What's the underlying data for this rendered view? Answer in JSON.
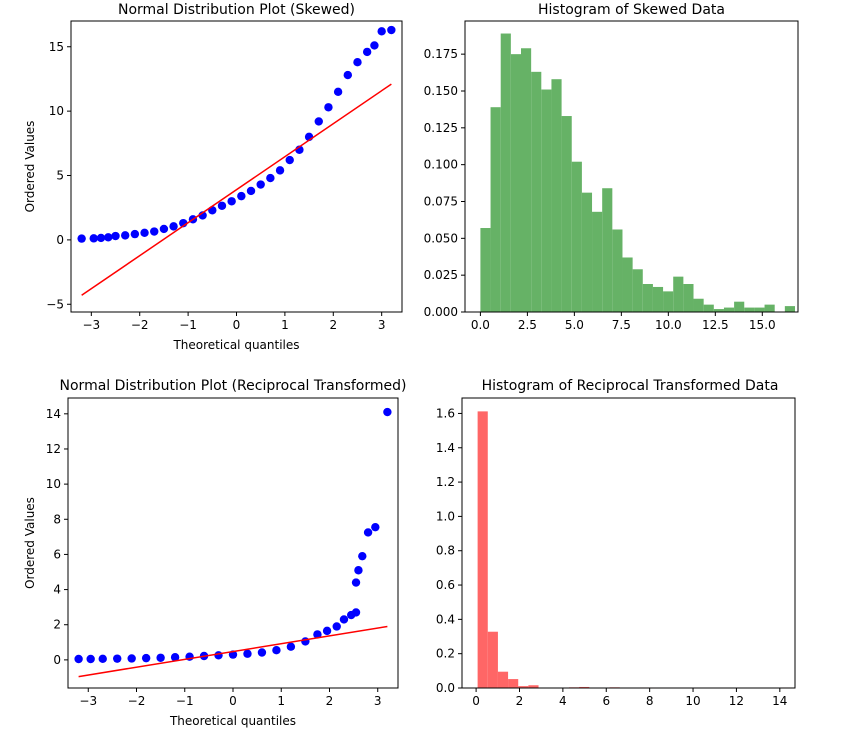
{
  "chart_data": [
    {
      "type": "scatter",
      "title": "Normal Distribution Plot (Skewed)",
      "xlabel": "Theoretical quantiles",
      "ylabel": "Ordered Values",
      "xlim": [
        -3.42,
        3.42
      ],
      "ylim": [
        -5.6,
        17.0
      ],
      "xticks": [
        -3,
        -2,
        -1,
        0,
        1,
        2,
        3
      ],
      "xtick_labels": [
        "−3",
        "−2",
        "−1",
        "0",
        "1",
        "2",
        "3"
      ],
      "yticks": [
        -5,
        0,
        5,
        10,
        15
      ],
      "ytick_labels": [
        "−5",
        "0",
        "5",
        "10",
        "15"
      ],
      "marker_color": "#0000ff",
      "line_color": "#ff0000",
      "points": [
        [
          -3.2,
          0.1
        ],
        [
          -2.95,
          0.12
        ],
        [
          -2.8,
          0.15
        ],
        [
          -2.65,
          0.2
        ],
        [
          -2.5,
          0.3
        ],
        [
          -2.3,
          0.35
        ],
        [
          -2.1,
          0.45
        ],
        [
          -1.9,
          0.55
        ],
        [
          -1.7,
          0.65
        ],
        [
          -1.5,
          0.85
        ],
        [
          -1.3,
          1.05
        ],
        [
          -1.1,
          1.3
        ],
        [
          -0.9,
          1.6
        ],
        [
          -0.7,
          1.9
        ],
        [
          -0.5,
          2.3
        ],
        [
          -0.3,
          2.65
        ],
        [
          -0.1,
          3.0
        ],
        [
          0.1,
          3.4
        ],
        [
          0.3,
          3.8
        ],
        [
          0.5,
          4.3
        ],
        [
          0.7,
          4.8
        ],
        [
          0.9,
          5.4
        ],
        [
          1.1,
          6.2
        ],
        [
          1.3,
          7.0
        ],
        [
          1.5,
          8.0
        ],
        [
          1.7,
          9.2
        ],
        [
          1.9,
          10.3
        ],
        [
          2.1,
          11.5
        ],
        [
          2.3,
          12.8
        ],
        [
          2.5,
          13.8
        ],
        [
          2.7,
          14.6
        ],
        [
          2.85,
          15.1
        ],
        [
          3.0,
          16.2
        ],
        [
          3.2,
          16.3
        ]
      ],
      "fit_line": [
        [
          -3.2,
          -4.3
        ],
        [
          3.2,
          12.1
        ]
      ]
    },
    {
      "type": "bar",
      "title": "Histogram of Skewed Data",
      "xlabel": "",
      "ylabel": "",
      "xlim": [
        -0.82,
        16.9
      ],
      "ylim": [
        0,
        0.1975
      ],
      "xticks": [
        0.0,
        2.5,
        5.0,
        7.5,
        10.0,
        12.5,
        15.0
      ],
      "xtick_labels": [
        "0.0",
        "2.5",
        "5.0",
        "7.5",
        "10.0",
        "12.5",
        "15.0"
      ],
      "yticks": [
        0.0,
        0.025,
        0.05,
        0.075,
        0.1,
        0.125,
        0.15,
        0.175
      ],
      "ytick_labels": [
        "0.000",
        "0.025",
        "0.050",
        "0.075",
        "0.100",
        "0.125",
        "0.150",
        "0.175"
      ],
      "color": "#66b266",
      "bin_start": 0.0,
      "bin_width": 0.54,
      "values": [
        0.057,
        0.139,
        0.189,
        0.175,
        0.179,
        0.163,
        0.151,
        0.158,
        0.133,
        0.102,
        0.081,
        0.068,
        0.084,
        0.056,
        0.037,
        0.029,
        0.019,
        0.017,
        0.014,
        0.024,
        0.019,
        0.009,
        0.005,
        0.002,
        0.003,
        0.007,
        0.003,
        0.003,
        0.005,
        0.0,
        0.004
      ]
    },
    {
      "type": "scatter",
      "title": "Normal Distribution Plot (Reciprocal Transformed)",
      "xlabel": "Theoretical quantiles",
      "ylabel": "Ordered Values",
      "xlim": [
        -3.42,
        3.42
      ],
      "ylim": [
        -1.6,
        14.9
      ],
      "xticks": [
        -3,
        -2,
        -1,
        0,
        1,
        2,
        3
      ],
      "xtick_labels": [
        "−3",
        "−2",
        "−1",
        "0",
        "1",
        "2",
        "3"
      ],
      "yticks": [
        0,
        2,
        4,
        6,
        8,
        10,
        12,
        14
      ],
      "ytick_labels": [
        "0",
        "2",
        "4",
        "6",
        "8",
        "10",
        "12",
        "14"
      ],
      "marker_color": "#0000ff",
      "line_color": "#ff0000",
      "points": [
        [
          -3.2,
          0.05
        ],
        [
          -2.95,
          0.05
        ],
        [
          -2.7,
          0.06
        ],
        [
          -2.4,
          0.07
        ],
        [
          -2.1,
          0.08
        ],
        [
          -1.8,
          0.1
        ],
        [
          -1.5,
          0.12
        ],
        [
          -1.2,
          0.15
        ],
        [
          -0.9,
          0.18
        ],
        [
          -0.6,
          0.22
        ],
        [
          -0.3,
          0.26
        ],
        [
          0.0,
          0.3
        ],
        [
          0.3,
          0.35
        ],
        [
          0.6,
          0.42
        ],
        [
          0.9,
          0.55
        ],
        [
          1.2,
          0.75
        ],
        [
          1.5,
          1.05
        ],
        [
          1.75,
          1.45
        ],
        [
          1.95,
          1.65
        ],
        [
          2.15,
          1.9
        ],
        [
          2.3,
          2.3
        ],
        [
          2.45,
          2.55
        ],
        [
          2.55,
          2.7
        ],
        [
          2.55,
          4.4
        ],
        [
          2.6,
          5.1
        ],
        [
          2.68,
          5.9
        ],
        [
          2.8,
          7.25
        ],
        [
          2.95,
          7.55
        ],
        [
          3.2,
          14.1
        ]
      ],
      "fit_line": [
        [
          -3.2,
          -0.95
        ],
        [
          3.2,
          1.9
        ]
      ]
    },
    {
      "type": "bar",
      "title": "Histogram of Reciprocal Transformed Data",
      "xlabel": "",
      "ylabel": "",
      "xlim": [
        -0.65,
        14.7
      ],
      "ylim": [
        0,
        1.69
      ],
      "xticks": [
        0,
        2,
        4,
        6,
        8,
        10,
        12,
        14
      ],
      "xtick_labels": [
        "0",
        "2",
        "4",
        "6",
        "8",
        "10",
        "12",
        "14"
      ],
      "yticks": [
        0.0,
        0.2,
        0.4,
        0.6,
        0.8,
        1.0,
        1.2,
        1.4,
        1.6
      ],
      "ytick_labels": [
        "0.0",
        "0.2",
        "0.4",
        "0.6",
        "0.8",
        "1.0",
        "1.2",
        "1.4",
        "1.6"
      ],
      "color": "#ff6666",
      "bin_start": 0.07,
      "bin_width": 0.468,
      "values": [
        1.612,
        0.328,
        0.095,
        0.052,
        0.011,
        0.016,
        0.0,
        0.0,
        0.0,
        0.004,
        0.006,
        0.0,
        0.0,
        0.004,
        0.0,
        0.0,
        0.003,
        0.0,
        0.0,
        0.0,
        0.0,
        0.0,
        0.0,
        0.0,
        0.0,
        0.0,
        0.0,
        0.0,
        0.0,
        0.0,
        0.003
      ]
    }
  ]
}
